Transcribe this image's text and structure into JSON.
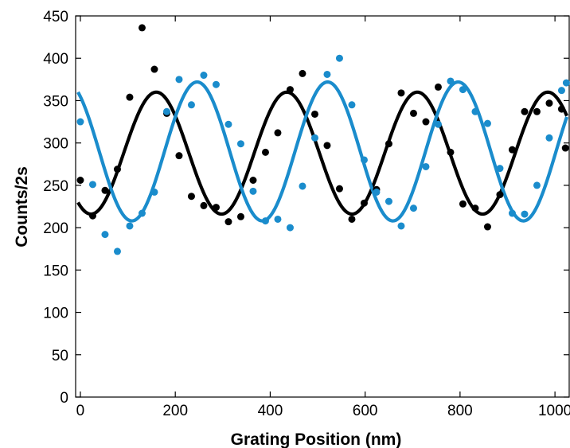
{
  "chart_data": {
    "type": "scatter",
    "title": "",
    "xlabel": "Grating Position (nm)",
    "ylabel": "Counts/2s",
    "xlim": [
      -10,
      1030
    ],
    "ylim": [
      0,
      450
    ],
    "xticks": [
      0,
      200,
      400,
      600,
      800,
      1000
    ],
    "yticks": [
      0,
      50,
      100,
      150,
      200,
      250,
      300,
      350,
      400,
      450
    ],
    "grid": false,
    "legend": "none",
    "colors": {
      "black": "#000000",
      "blue": "#1a8ccc"
    },
    "series": [
      {
        "color": "#000000",
        "points": [
          [
            0,
            256
          ],
          [
            26,
            214
          ],
          [
            52,
            244
          ],
          [
            78,
            269
          ],
          [
            104,
            354
          ],
          [
            130,
            436
          ],
          [
            156,
            387
          ],
          [
            182,
            335
          ],
          [
            208,
            285
          ],
          [
            234,
            237
          ],
          [
            260,
            226
          ],
          [
            286,
            224
          ],
          [
            312,
            207
          ],
          [
            338,
            213
          ],
          [
            364,
            256
          ],
          [
            390,
            289
          ],
          [
            416,
            312
          ],
          [
            442,
            363
          ],
          [
            468,
            382
          ],
          [
            494,
            334
          ],
          [
            520,
            297
          ],
          [
            546,
            246
          ],
          [
            572,
            210
          ],
          [
            598,
            229
          ],
          [
            624,
            245
          ],
          [
            650,
            299
          ],
          [
            676,
            359
          ],
          [
            702,
            335
          ],
          [
            728,
            325
          ],
          [
            754,
            366
          ],
          [
            780,
            289
          ],
          [
            806,
            228
          ],
          [
            832,
            223
          ],
          [
            858,
            201
          ],
          [
            884,
            239
          ],
          [
            910,
            292
          ],
          [
            936,
            337
          ],
          [
            962,
            337
          ],
          [
            988,
            347
          ],
          [
            1014,
            340
          ],
          [
            1022,
            294
          ]
        ],
        "fit": {
          "mean": 288,
          "amplitude": 72,
          "period": 275,
          "peak_x": 160
        }
      },
      {
        "color": "#1a8ccc",
        "points": [
          [
            0,
            325
          ],
          [
            26,
            251
          ],
          [
            52,
            192
          ],
          [
            78,
            172
          ],
          [
            104,
            202
          ],
          [
            130,
            217
          ],
          [
            156,
            242
          ],
          [
            182,
            337
          ],
          [
            208,
            375
          ],
          [
            234,
            345
          ],
          [
            260,
            380
          ],
          [
            286,
            369
          ],
          [
            312,
            322
          ],
          [
            338,
            299
          ],
          [
            364,
            243
          ],
          [
            390,
            208
          ],
          [
            416,
            210
          ],
          [
            442,
            200
          ],
          [
            468,
            249
          ],
          [
            494,
            306
          ],
          [
            520,
            381
          ],
          [
            546,
            400
          ],
          [
            572,
            345
          ],
          [
            598,
            280
          ],
          [
            624,
            242
          ],
          [
            650,
            231
          ],
          [
            676,
            202
          ],
          [
            702,
            223
          ],
          [
            728,
            272
          ],
          [
            754,
            322
          ],
          [
            780,
            373
          ],
          [
            806,
            363
          ],
          [
            832,
            337
          ],
          [
            858,
            323
          ],
          [
            884,
            270
          ],
          [
            910,
            217
          ],
          [
            936,
            216
          ],
          [
            962,
            250
          ],
          [
            988,
            306
          ],
          [
            1014,
            362
          ],
          [
            1024,
            371
          ]
        ],
        "fit": {
          "mean": 290,
          "amplitude": 82,
          "period": 275,
          "peak_x": 246
        }
      }
    ]
  }
}
